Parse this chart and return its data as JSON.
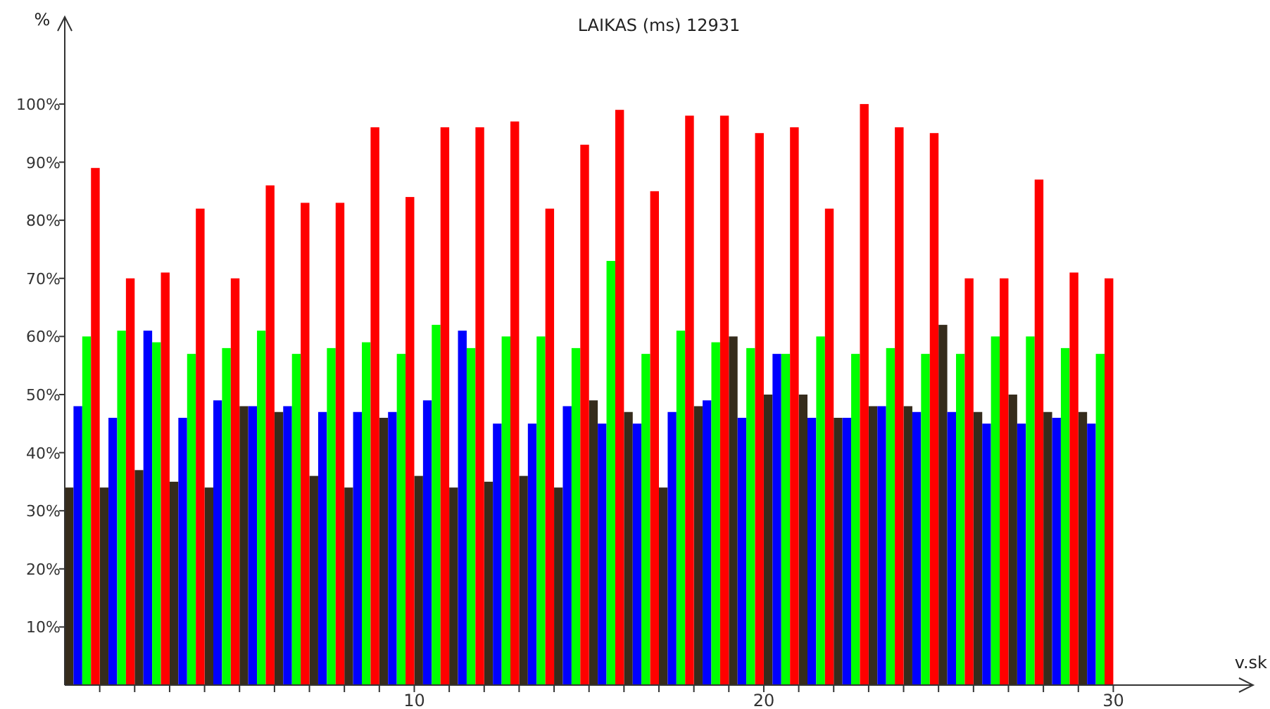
{
  "chart_data": {
    "type": "bar",
    "title": "LAIKAS (ms) 12931",
    "xlabel": "v.sk",
    "ylabel": "%",
    "x": [
      0.5,
      1.5,
      2.5,
      3.5,
      4.5,
      5.5,
      6.5,
      7.5,
      8.5,
      9.5,
      10.5,
      11.5,
      12.5,
      13.5,
      14.5,
      15.5,
      16.5,
      17.5,
      18.5,
      19.5,
      20.5,
      21.5,
      22.5,
      23.5,
      24.5,
      25.5,
      26.5,
      27.5,
      28.5,
      29.5
    ],
    "series": [
      {
        "color": "#362c1c",
        "values": [
          34,
          34,
          37,
          35,
          34,
          48,
          47,
          36,
          34,
          46,
          36,
          34,
          35,
          36,
          34,
          49,
          47,
          34,
          48,
          60,
          50,
          50,
          46,
          48,
          48,
          62,
          47,
          50,
          47,
          47
        ]
      },
      {
        "color": "#0000ff",
        "values": [
          48,
          46,
          61,
          46,
          49,
          48,
          48,
          47,
          47,
          47,
          49,
          61,
          45,
          45,
          48,
          45,
          45,
          47,
          49,
          46,
          57,
          46,
          46,
          48,
          47,
          47,
          45,
          45,
          46,
          45
        ]
      },
      {
        "color": "#00ff00",
        "values": [
          60,
          61,
          59,
          57,
          58,
          61,
          57,
          58,
          59,
          57,
          62,
          58,
          60,
          60,
          58,
          73,
          57,
          61,
          59,
          58,
          57,
          60,
          57,
          58,
          57,
          57,
          60,
          60,
          58,
          57
        ]
      },
      {
        "color": "#ff0000",
        "values": [
          89,
          70,
          71,
          82,
          70,
          86,
          83,
          83,
          96,
          84,
          96,
          96,
          97,
          82,
          93,
          99,
          85,
          98,
          98,
          95,
          96,
          82,
          100,
          96,
          95,
          70,
          70,
          87,
          71,
          70
        ]
      }
    ],
    "xlim": [
      0,
      34
    ],
    "xticks": [
      {
        "value": 1,
        "label": null
      },
      {
        "value": 2,
        "label": null
      },
      {
        "value": 3,
        "label": null
      },
      {
        "value": 4,
        "label": null
      },
      {
        "value": 5,
        "label": null
      },
      {
        "value": 6,
        "label": null
      },
      {
        "value": 7,
        "label": null
      },
      {
        "value": 8,
        "label": null
      },
      {
        "value": 9,
        "label": null
      },
      10,
      {
        "value": 11,
        "label": null
      },
      {
        "value": 12,
        "label": null
      },
      {
        "value": 13,
        "label": null
      },
      {
        "value": 14,
        "label": null
      },
      {
        "value": 15,
        "label": null
      },
      {
        "value": 16,
        "label": null
      },
      {
        "value": 17,
        "label": null
      },
      {
        "value": 18,
        "label": null
      },
      {
        "value": 19,
        "label": null
      },
      20,
      {
        "value": 21,
        "label": null
      },
      {
        "value": 22,
        "label": null
      },
      {
        "value": 23,
        "label": null
      },
      {
        "value": 24,
        "label": null
      },
      {
        "value": 25,
        "label": null
      },
      {
        "value": 26,
        "label": null
      },
      {
        "value": 27,
        "label": null
      },
      {
        "value": 28,
        "label": null
      },
      {
        "value": 29,
        "label": null
      },
      30
    ],
    "ylim": [
      0,
      115
    ],
    "yticks": [
      {
        "value": 10,
        "label": "10%"
      },
      {
        "value": 20,
        "label": "20%"
      },
      {
        "value": 30,
        "label": "30%"
      },
      {
        "value": 40,
        "label": "40%"
      },
      {
        "value": 50,
        "label": "50%"
      },
      {
        "value": 60,
        "label": "60%"
      },
      {
        "value": 70,
        "label": "70%"
      },
      {
        "value": 80,
        "label": "80%"
      },
      {
        "value": 90,
        "label": "90%"
      },
      {
        "value": 100,
        "label": "100%"
      }
    ],
    "tick_labels": "xy"
  }
}
